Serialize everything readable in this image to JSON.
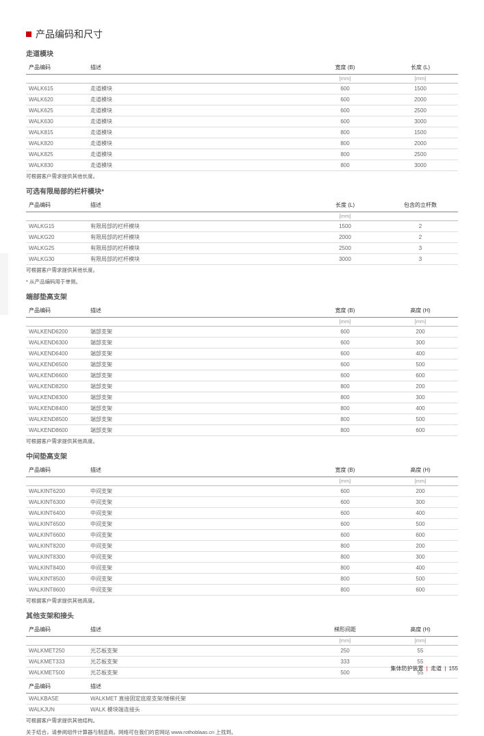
{
  "page_title": "产品编码和尺寸",
  "sections": [
    {
      "title": "走道模块",
      "columns": [
        "产品编码",
        "描述",
        "宽度 (B)",
        "长度 (L)"
      ],
      "units": [
        "",
        "",
        "[mm]",
        "[mm]"
      ],
      "rows": [
        [
          "WALK615",
          "走道模块",
          "600",
          "1500"
        ],
        [
          "WALK620",
          "走道模块",
          "600",
          "2000"
        ],
        [
          "WALK625",
          "走道模块",
          "600",
          "2500"
        ],
        [
          "WALK630",
          "走道模块",
          "600",
          "3000"
        ],
        [
          "WALK815",
          "走道模块",
          "800",
          "1500"
        ],
        [
          "WALK820",
          "走道模块",
          "800",
          "2000"
        ],
        [
          "WALK825",
          "走道模块",
          "800",
          "2500"
        ],
        [
          "WALK830",
          "走道模块",
          "800",
          "3000"
        ]
      ],
      "note": "可根据客户需求提供其他长度。"
    },
    {
      "title": "可选有限局部的栏杆模块*",
      "columns": [
        "产品编码",
        "描述",
        "长度 (L)",
        "包含的立杆数"
      ],
      "units": [
        "",
        "",
        "[mm]",
        ""
      ],
      "rows": [
        [
          "WALKG15",
          "有限局部的栏杆模块",
          "1500",
          "2"
        ],
        [
          "WALKG20",
          "有限局部的栏杆模块",
          "2000",
          "2"
        ],
        [
          "WALKG25",
          "有限局部的栏杆模块",
          "2500",
          "3"
        ],
        [
          "WALKG30",
          "有限局部的栏杆模块",
          "3000",
          "3"
        ]
      ],
      "note": "可根据客户需求提供其他长度。\n* 从产品编码用于单侧。"
    },
    {
      "title": "端部垫高支架",
      "columns": [
        "产品编码",
        "描述",
        "宽度 (B)",
        "高度 (H)"
      ],
      "units": [
        "",
        "",
        "[mm]",
        "[mm]"
      ],
      "rows": [
        [
          "WALKEND6200",
          "端部支架",
          "600",
          "200"
        ],
        [
          "WALKEND6300",
          "端部支架",
          "600",
          "300"
        ],
        [
          "WALKEND6400",
          "端部支架",
          "600",
          "400"
        ],
        [
          "WALKEND6500",
          "端部支架",
          "600",
          "500"
        ],
        [
          "WALKEND6600",
          "端部支架",
          "600",
          "600"
        ],
        [
          "WALKEND8200",
          "端部支架",
          "800",
          "200"
        ],
        [
          "WALKEND8300",
          "端部支架",
          "800",
          "300"
        ],
        [
          "WALKEND8400",
          "端部支架",
          "800",
          "400"
        ],
        [
          "WALKEND8500",
          "端部支架",
          "800",
          "500"
        ],
        [
          "WALKEND8600",
          "端部支架",
          "800",
          "600"
        ]
      ],
      "note": "可根据客户需求提供其他高度。"
    },
    {
      "title": "中间垫高支架",
      "columns": [
        "产品编码",
        "描述",
        "宽度 (B)",
        "高度 (H)"
      ],
      "units": [
        "",
        "",
        "[mm]",
        "[mm]"
      ],
      "rows": [
        [
          "WALKINT6200",
          "中间支架",
          "600",
          "200"
        ],
        [
          "WALKINT6300",
          "中间支架",
          "600",
          "300"
        ],
        [
          "WALKINT6400",
          "中间支架",
          "600",
          "400"
        ],
        [
          "WALKINT6500",
          "中间支架",
          "600",
          "500"
        ],
        [
          "WALKINT6600",
          "中间支架",
          "600",
          "600"
        ],
        [
          "WALKINT8200",
          "中间支架",
          "800",
          "200"
        ],
        [
          "WALKINT8300",
          "中间支架",
          "800",
          "300"
        ],
        [
          "WALKINT8400",
          "中间支架",
          "800",
          "400"
        ],
        [
          "WALKINT8500",
          "中间支架",
          "800",
          "500"
        ],
        [
          "WALKINT8600",
          "中间支架",
          "800",
          "600"
        ]
      ],
      "note": "可根据客户需求提供其他高度。"
    },
    {
      "title": "其他支架和接头",
      "columns": [
        "产品编码",
        "描述",
        "梯形间距",
        "高度 (H)"
      ],
      "units": [
        "",
        "",
        "[mm]",
        "[mm]"
      ],
      "rows": [
        [
          "WALKMET250",
          "光芯板支架",
          "250",
          "55"
        ],
        [
          "WALKMET333",
          "光芯板支架",
          "333",
          "55"
        ],
        [
          "WALKMET500",
          "光芯板支架",
          "500",
          "55"
        ]
      ]
    },
    {
      "columns": [
        "产品编码",
        "描述"
      ],
      "rows": [
        [
          "WALKBASE",
          "WALKMET 直接固定底座支架/矮梯托架"
        ],
        [
          "WALKJUN",
          "WALK 模块端连接头"
        ]
      ],
      "note": "可根据客户需求提供其他结构。\n关于结合，请参阅组件计算器与制造商。网络可在我们的官网站 www.rothoblaas.cn 上找到。"
    }
  ],
  "footer": {
    "left": "集体防护装置",
    "right": "走道",
    "page": "155"
  }
}
